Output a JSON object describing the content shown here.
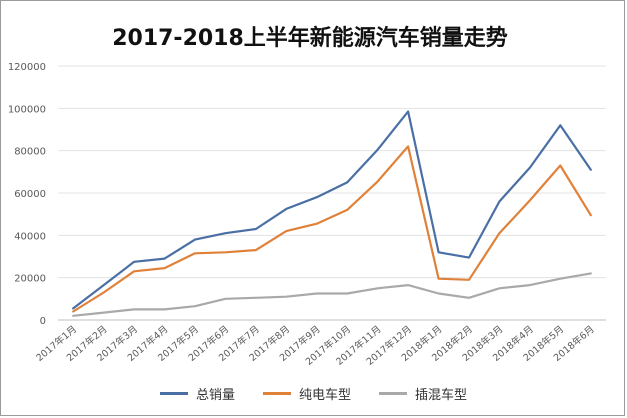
{
  "chart_data": {
    "type": "line",
    "title": "2017-2018上半年新能源汽车销量走势",
    "categories": [
      "2017年1月",
      "2017年2月",
      "2017年3月",
      "2017年4月",
      "2017年5月",
      "2017年6月",
      "2017年7月",
      "2017年8月",
      "2017年9月",
      "2017年10月",
      "2017年11月",
      "2017年12月",
      "2018年1月",
      "2018年2月",
      "2018年3月",
      "2018年4月",
      "2018年5月",
      "2018年6月"
    ],
    "ylim": [
      0,
      120000
    ],
    "yticks": [
      "0",
      "20000",
      "40000",
      "60000",
      "80000",
      "100000",
      "120000"
    ],
    "grid": true,
    "legend_position": "bottom",
    "series": [
      {
        "name": "总销量",
        "color": "#4a6fa5",
        "values": [
          5500,
          16500,
          27500,
          29000,
          38000,
          41000,
          43000,
          52500,
          58000,
          65000,
          80500,
          98500,
          32000,
          29500,
          56000,
          72000,
          92000,
          71000
        ]
      },
      {
        "name": "纯电车型",
        "color": "#e0813a",
        "values": [
          4000,
          13000,
          23000,
          24500,
          31500,
          32000,
          33000,
          42000,
          45500,
          52000,
          65500,
          82000,
          19500,
          19000,
          41000,
          56500,
          73000,
          49500
        ]
      },
      {
        "name": "插混车型",
        "color": "#a9a9a9",
        "values": [
          2000,
          3500,
          5000,
          5000,
          6500,
          10000,
          10500,
          11000,
          12500,
          12500,
          15000,
          16500,
          12500,
          10500,
          15000,
          16500,
          19500,
          22000
        ]
      }
    ]
  }
}
